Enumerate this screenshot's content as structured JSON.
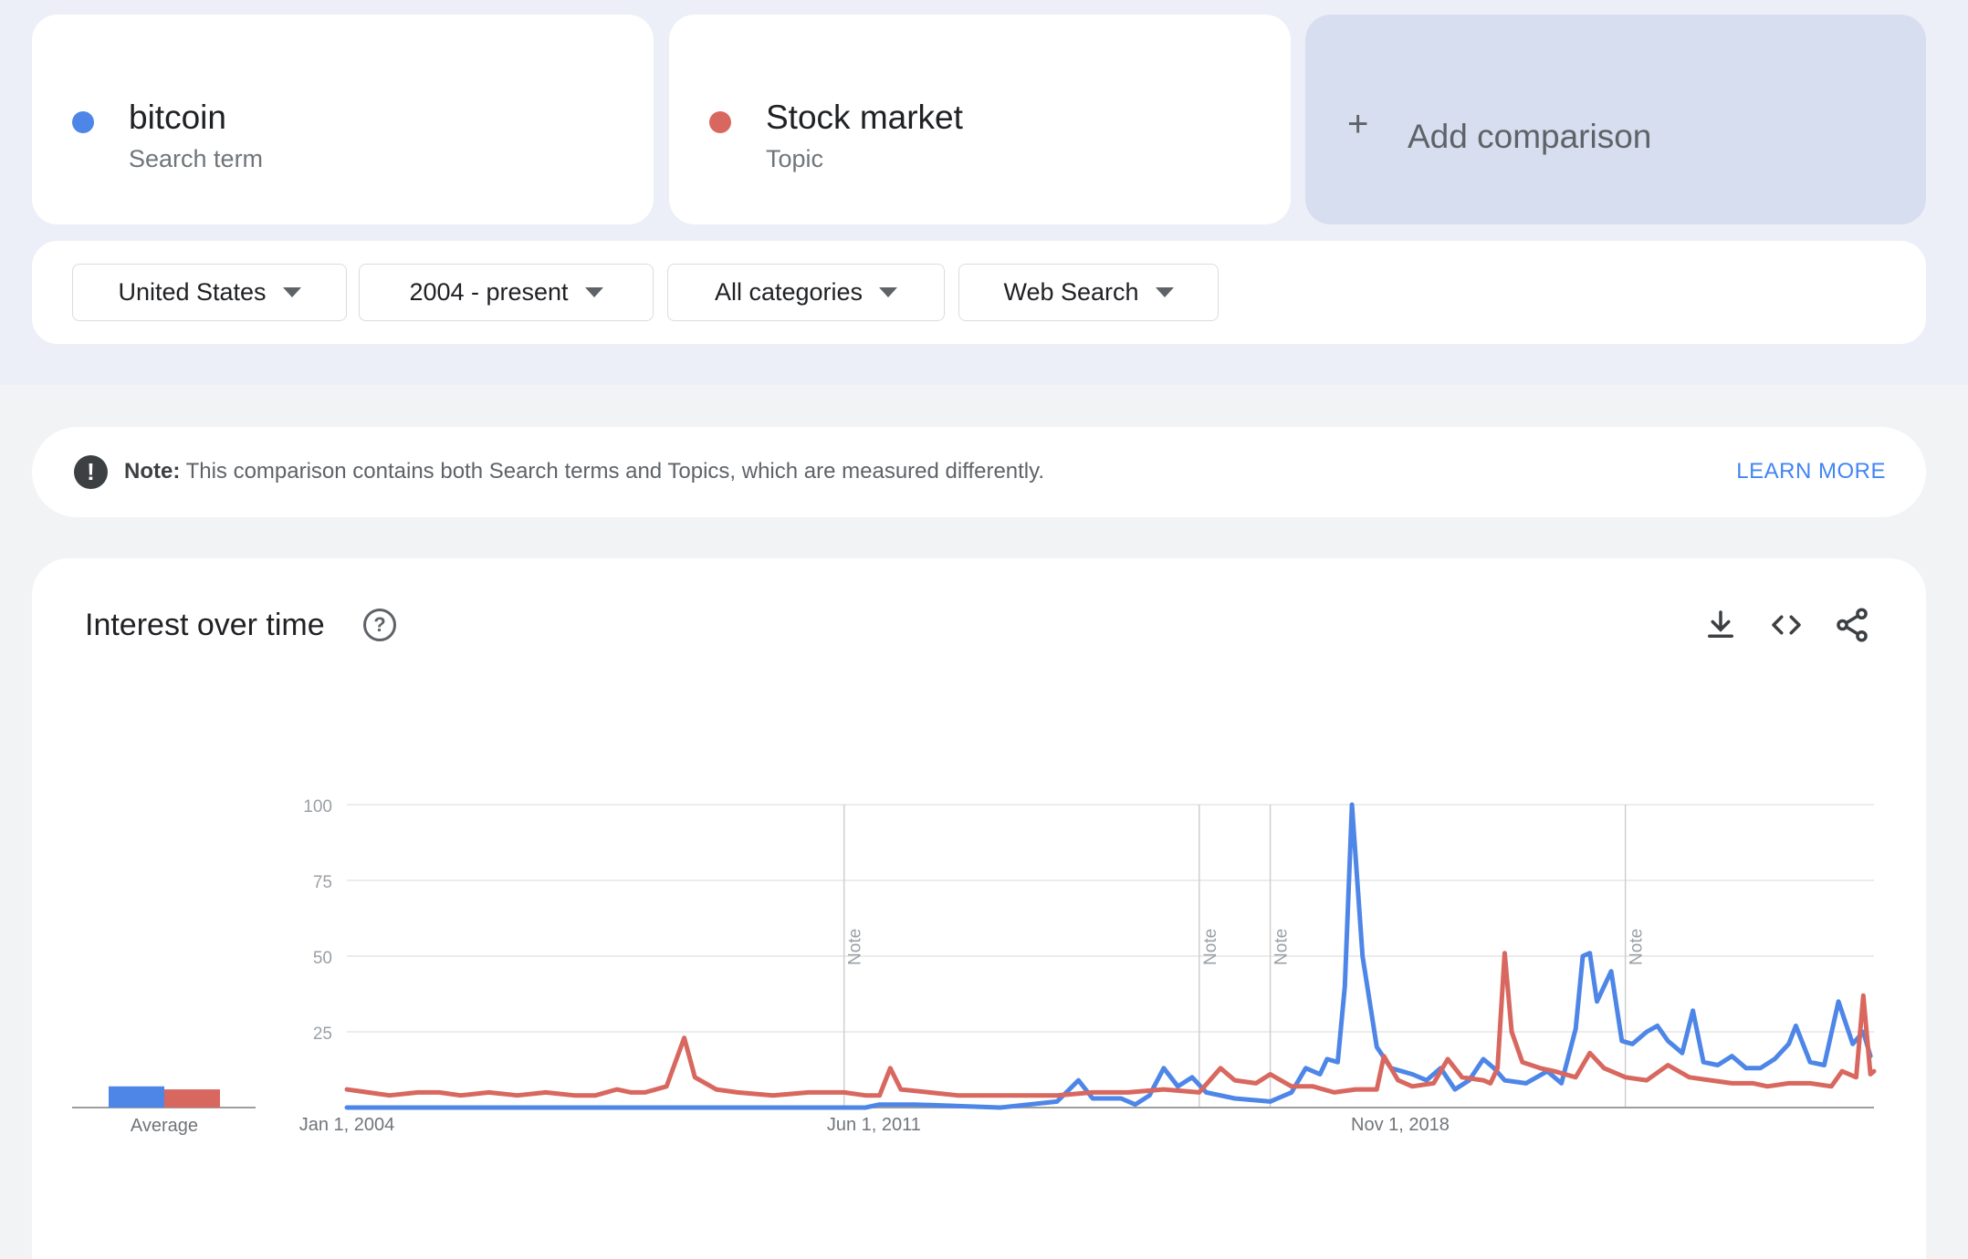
{
  "terms": [
    {
      "name": "bitcoin",
      "type": "Search term",
      "color": "#4e86e8"
    },
    {
      "name": "Stock market",
      "type": "Topic",
      "color": "#d8685f"
    }
  ],
  "add_comparison": {
    "plus": "+",
    "label": "Add comparison"
  },
  "filters": {
    "region": "United States",
    "time": "2004 - present",
    "category": "All categories",
    "property": "Web Search"
  },
  "note": {
    "icon_text": "!",
    "label": "Note:",
    "text": "This comparison contains both Search terms and Topics, which are measured differently.",
    "link": "LEARN MORE"
  },
  "chart": {
    "title": "Interest over time",
    "help_icon": "help-circle-icon",
    "actions": [
      "download-icon",
      "embed-code-icon",
      "share-icon"
    ]
  },
  "chart_data": {
    "type": "line",
    "y_ticks": [
      100,
      75,
      50,
      25
    ],
    "ylim": [
      0,
      100
    ],
    "x_tick_labels": [
      "Jan 1, 2004",
      "Jun 1, 2011",
      "Nov 1, 2018"
    ],
    "x_tick_years": [
      2004.0,
      2011.42,
      2018.83
    ],
    "xlim": [
      2004.0,
      2025.5
    ],
    "note_label": "Note",
    "note_years": [
      2011.0,
      2016.0,
      2017.0,
      2022.0
    ],
    "average": {
      "label": "Average",
      "values": [
        7,
        6
      ]
    },
    "series": [
      {
        "name": "bitcoin",
        "color": "#4e86e8",
        "points": [
          [
            2004.0,
            0
          ],
          [
            2011.3,
            0
          ],
          [
            2011.5,
            1
          ],
          [
            2012.0,
            1
          ],
          [
            2013.2,
            0
          ],
          [
            2013.6,
            1
          ],
          [
            2014.0,
            2
          ],
          [
            2014.3,
            9
          ],
          [
            2014.5,
            3
          ],
          [
            2014.9,
            3
          ],
          [
            2015.1,
            1
          ],
          [
            2015.3,
            4
          ],
          [
            2015.5,
            13
          ],
          [
            2015.7,
            7
          ],
          [
            2015.9,
            10
          ],
          [
            2016.1,
            5
          ],
          [
            2016.5,
            3
          ],
          [
            2017.0,
            2
          ],
          [
            2017.3,
            5
          ],
          [
            2017.5,
            13
          ],
          [
            2017.7,
            11
          ],
          [
            2017.8,
            16
          ],
          [
            2017.95,
            15
          ],
          [
            2018.05,
            40
          ],
          [
            2018.15,
            100
          ],
          [
            2018.3,
            50
          ],
          [
            2018.5,
            20
          ],
          [
            2018.7,
            13
          ],
          [
            2019.0,
            11
          ],
          [
            2019.2,
            9
          ],
          [
            2019.4,
            13
          ],
          [
            2019.6,
            6
          ],
          [
            2019.8,
            9
          ],
          [
            2020.0,
            16
          ],
          [
            2020.15,
            13
          ],
          [
            2020.3,
            9
          ],
          [
            2020.6,
            8
          ],
          [
            2020.9,
            12
          ],
          [
            2021.1,
            8
          ],
          [
            2021.3,
            26
          ],
          [
            2021.4,
            50
          ],
          [
            2021.5,
            51
          ],
          [
            2021.6,
            35
          ],
          [
            2021.8,
            45
          ],
          [
            2021.95,
            22
          ],
          [
            2022.1,
            21
          ],
          [
            2022.3,
            25
          ],
          [
            2022.45,
            27
          ],
          [
            2022.6,
            22
          ],
          [
            2022.8,
            18
          ],
          [
            2022.95,
            32
          ],
          [
            2023.1,
            15
          ],
          [
            2023.3,
            14
          ],
          [
            2023.5,
            17
          ],
          [
            2023.7,
            13
          ],
          [
            2023.9,
            13
          ],
          [
            2024.1,
            16
          ],
          [
            2024.3,
            21
          ],
          [
            2024.4,
            27
          ],
          [
            2024.6,
            15
          ],
          [
            2024.8,
            14
          ],
          [
            2025.0,
            35
          ],
          [
            2025.2,
            21
          ],
          [
            2025.35,
            25
          ],
          [
            2025.45,
            17
          ]
        ]
      },
      {
        "name": "Stock market",
        "color": "#d8685f",
        "points": [
          [
            2004.0,
            6
          ],
          [
            2004.3,
            5
          ],
          [
            2004.6,
            4
          ],
          [
            2005.0,
            5
          ],
          [
            2005.3,
            5
          ],
          [
            2005.6,
            4
          ],
          [
            2006.0,
            5
          ],
          [
            2006.4,
            4
          ],
          [
            2006.8,
            5
          ],
          [
            2007.2,
            4
          ],
          [
            2007.5,
            4
          ],
          [
            2007.8,
            6
          ],
          [
            2008.0,
            5
          ],
          [
            2008.2,
            5
          ],
          [
            2008.5,
            7
          ],
          [
            2008.75,
            23
          ],
          [
            2008.9,
            10
          ],
          [
            2009.2,
            6
          ],
          [
            2009.5,
            5
          ],
          [
            2010.0,
            4
          ],
          [
            2010.5,
            5
          ],
          [
            2011.0,
            5
          ],
          [
            2011.3,
            4
          ],
          [
            2011.5,
            4
          ],
          [
            2011.65,
            13
          ],
          [
            2011.8,
            6
          ],
          [
            2012.2,
            5
          ],
          [
            2012.6,
            4
          ],
          [
            2013.0,
            4
          ],
          [
            2013.5,
            4
          ],
          [
            2014.0,
            4
          ],
          [
            2014.5,
            5
          ],
          [
            2015.0,
            5
          ],
          [
            2015.5,
            6
          ],
          [
            2016.0,
            5
          ],
          [
            2016.3,
            13
          ],
          [
            2016.5,
            9
          ],
          [
            2016.8,
            8
          ],
          [
            2017.0,
            11
          ],
          [
            2017.3,
            7
          ],
          [
            2017.6,
            7
          ],
          [
            2017.9,
            5
          ],
          [
            2018.2,
            6
          ],
          [
            2018.5,
            6
          ],
          [
            2018.6,
            17
          ],
          [
            2018.8,
            9
          ],
          [
            2019.0,
            7
          ],
          [
            2019.3,
            8
          ],
          [
            2019.5,
            16
          ],
          [
            2019.7,
            10
          ],
          [
            2020.0,
            9
          ],
          [
            2020.1,
            8
          ],
          [
            2020.2,
            13
          ],
          [
            2020.3,
            51
          ],
          [
            2020.4,
            25
          ],
          [
            2020.55,
            15
          ],
          [
            2020.8,
            13
          ],
          [
            2021.0,
            12
          ],
          [
            2021.3,
            10
          ],
          [
            2021.5,
            18
          ],
          [
            2021.7,
            13
          ],
          [
            2022.0,
            10
          ],
          [
            2022.3,
            9
          ],
          [
            2022.6,
            14
          ],
          [
            2022.9,
            10
          ],
          [
            2023.2,
            9
          ],
          [
            2023.5,
            8
          ],
          [
            2023.8,
            8
          ],
          [
            2024.0,
            7
          ],
          [
            2024.3,
            8
          ],
          [
            2024.6,
            8
          ],
          [
            2024.9,
            7
          ],
          [
            2025.05,
            12
          ],
          [
            2025.25,
            10
          ],
          [
            2025.35,
            37
          ],
          [
            2025.45,
            11
          ],
          [
            2025.5,
            12
          ]
        ]
      }
    ]
  }
}
